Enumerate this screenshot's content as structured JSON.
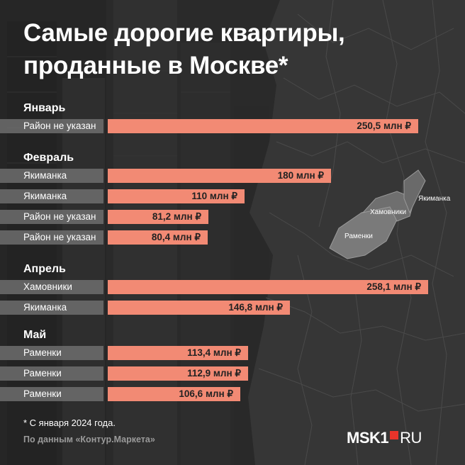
{
  "title_line1": "Самые дорогие квартиры,",
  "title_line2": "проданные в Москве*",
  "footnote": "* С января 2024 года.",
  "source": "По данным «Контур.Маркета»",
  "logo": {
    "main": "MSK1",
    "suffix": "RU"
  },
  "map_labels": [
    "Якиманка",
    "Хамовники",
    "Раменки"
  ],
  "colors": {
    "bar": "#f28a74",
    "background": "#2c2c2c",
    "label_bg": "#707070",
    "logo_square": "#e8342a"
  },
  "chart_data": {
    "type": "bar",
    "orientation": "horizontal",
    "unit": "млн ₽",
    "groups": [
      {
        "month": "Январь",
        "rows": [
          {
            "district": "Район не указан",
            "value": 250.5,
            "label": "250,5 млн ₽"
          }
        ]
      },
      {
        "month": "Февраль",
        "rows": [
          {
            "district": "Якиманка",
            "value": 180,
            "label": "180 млн ₽"
          },
          {
            "district": "Якиманка",
            "value": 110,
            "label": "110 млн ₽"
          },
          {
            "district": "Район не указан",
            "value": 81.2,
            "label": "81,2 млн ₽"
          },
          {
            "district": "Район не указан",
            "value": 80.4,
            "label": "80,4 млн ₽"
          }
        ]
      },
      {
        "month": "Апрель",
        "rows": [
          {
            "district": "Хамовники",
            "value": 258.1,
            "label": "258,1 млн ₽"
          },
          {
            "district": "Якиманка",
            "value": 146.8,
            "label": "146,8 млн ₽"
          }
        ]
      },
      {
        "month": "Май",
        "rows": [
          {
            "district": "Раменки",
            "value": 113.4,
            "label": "113,4 млн ₽"
          },
          {
            "district": "Раменки",
            "value": 112.9,
            "label": "112,9 млн ₽"
          },
          {
            "district": "Раменки",
            "value": 106.6,
            "label": "106,6 млн ₽"
          }
        ]
      }
    ]
  }
}
